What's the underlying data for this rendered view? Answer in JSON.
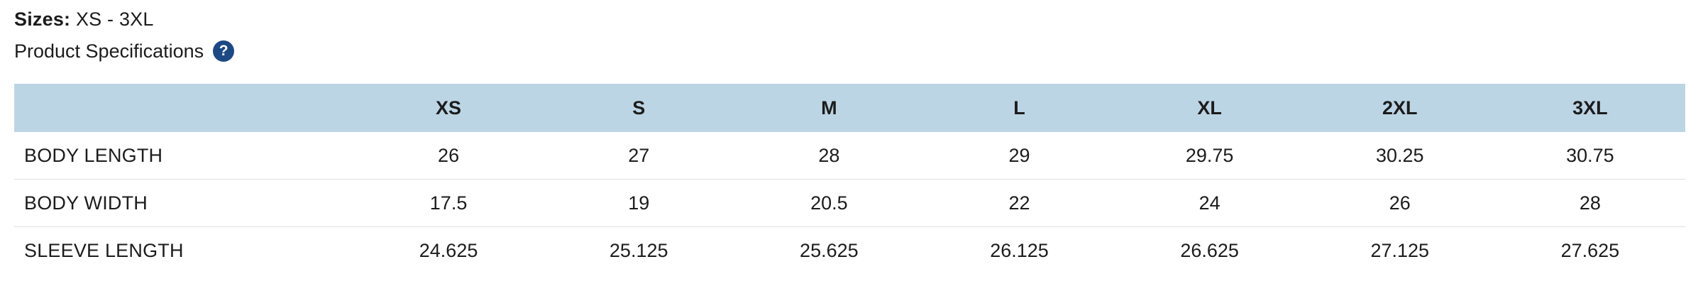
{
  "meta": {
    "sizes_label": "Sizes:",
    "sizes_value": "XS - 3XL",
    "section_title": "Product Specifications",
    "help_icon": "question-mark-icon"
  },
  "colors": {
    "header_bg": "#bcd5e5",
    "help_icon_bg": "#1d4886",
    "row_border": "#e0e0e0",
    "text": "#1c1c1c"
  },
  "table": {
    "columns": [
      "",
      "XS",
      "S",
      "M",
      "L",
      "XL",
      "2XL",
      "3XL"
    ],
    "rows": [
      {
        "label": "BODY LENGTH",
        "values": [
          "26",
          "27",
          "28",
          "29",
          "29.75",
          "30.25",
          "30.75"
        ]
      },
      {
        "label": "BODY WIDTH",
        "values": [
          "17.5",
          "19",
          "20.5",
          "22",
          "24",
          "26",
          "28"
        ]
      },
      {
        "label": "SLEEVE LENGTH",
        "values": [
          "24.625",
          "25.125",
          "25.625",
          "26.125",
          "26.625",
          "27.125",
          "27.625"
        ]
      }
    ]
  }
}
